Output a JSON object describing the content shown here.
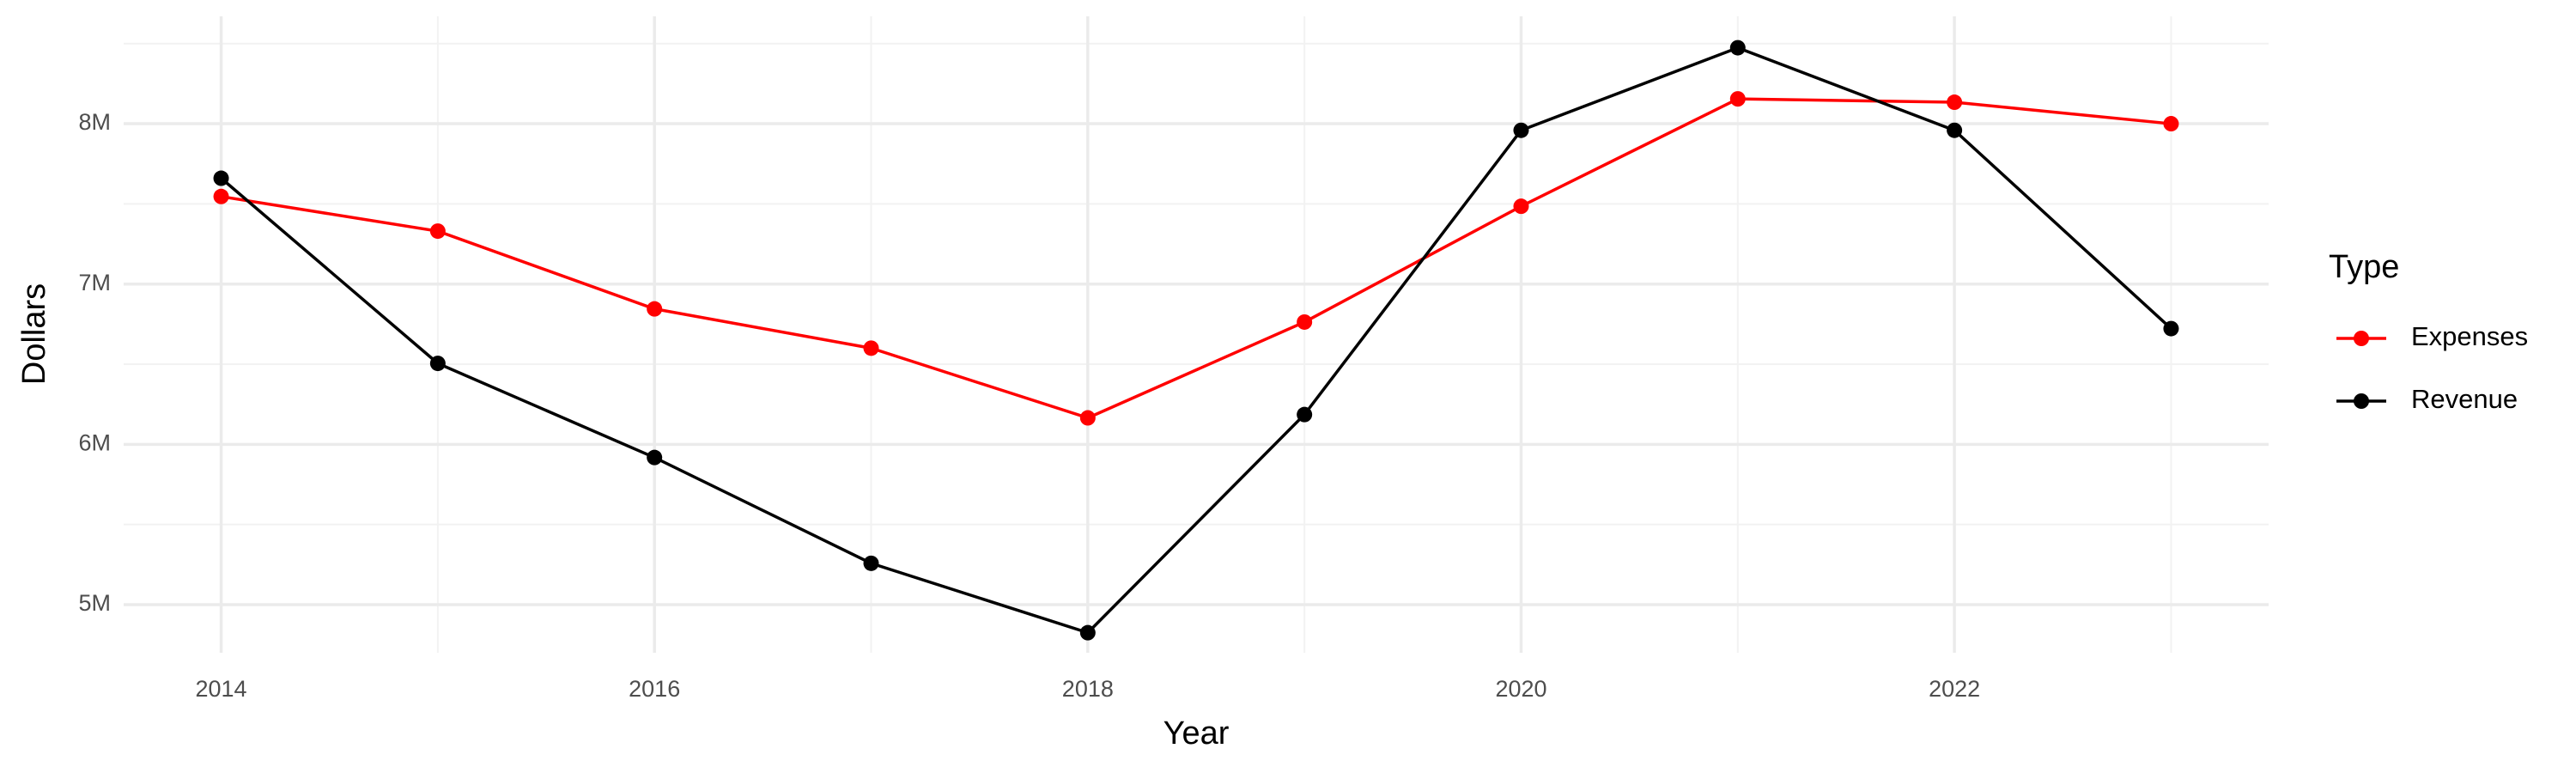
{
  "chart_data": {
    "type": "line",
    "x_label": "Year",
    "y_label": "Dollars",
    "legend_title": "Type",
    "legend": "right",
    "x": [
      2014,
      2015,
      2016,
      2017,
      2018,
      2019,
      2020,
      2021,
      2022,
      2023
    ],
    "series": [
      {
        "name": "Expenses",
        "color": "#ff0000",
        "values": [
          7546000,
          7330000,
          6845000,
          6600000,
          6165000,
          6763000,
          7485000,
          8155000,
          8134000,
          8000000
        ]
      },
      {
        "name": "Revenue",
        "color": "#000000",
        "values": [
          7660000,
          6505000,
          5918000,
          5258000,
          4825000,
          6186000,
          7959000,
          8474000,
          7959000,
          6722000
        ]
      }
    ],
    "xlim": [
      2013.55,
      2023.45
    ],
    "xticks": [
      2014,
      2016,
      2018,
      2020,
      2022
    ],
    "ylim": [
      4700000,
      8670000
    ],
    "yticks": [
      {
        "value": 5000000,
        "label": "5M"
      },
      {
        "value": 6000000,
        "label": "6M"
      },
      {
        "value": 7000000,
        "label": "7M"
      },
      {
        "value": 8000000,
        "label": "8M"
      }
    ],
    "grid": true
  }
}
